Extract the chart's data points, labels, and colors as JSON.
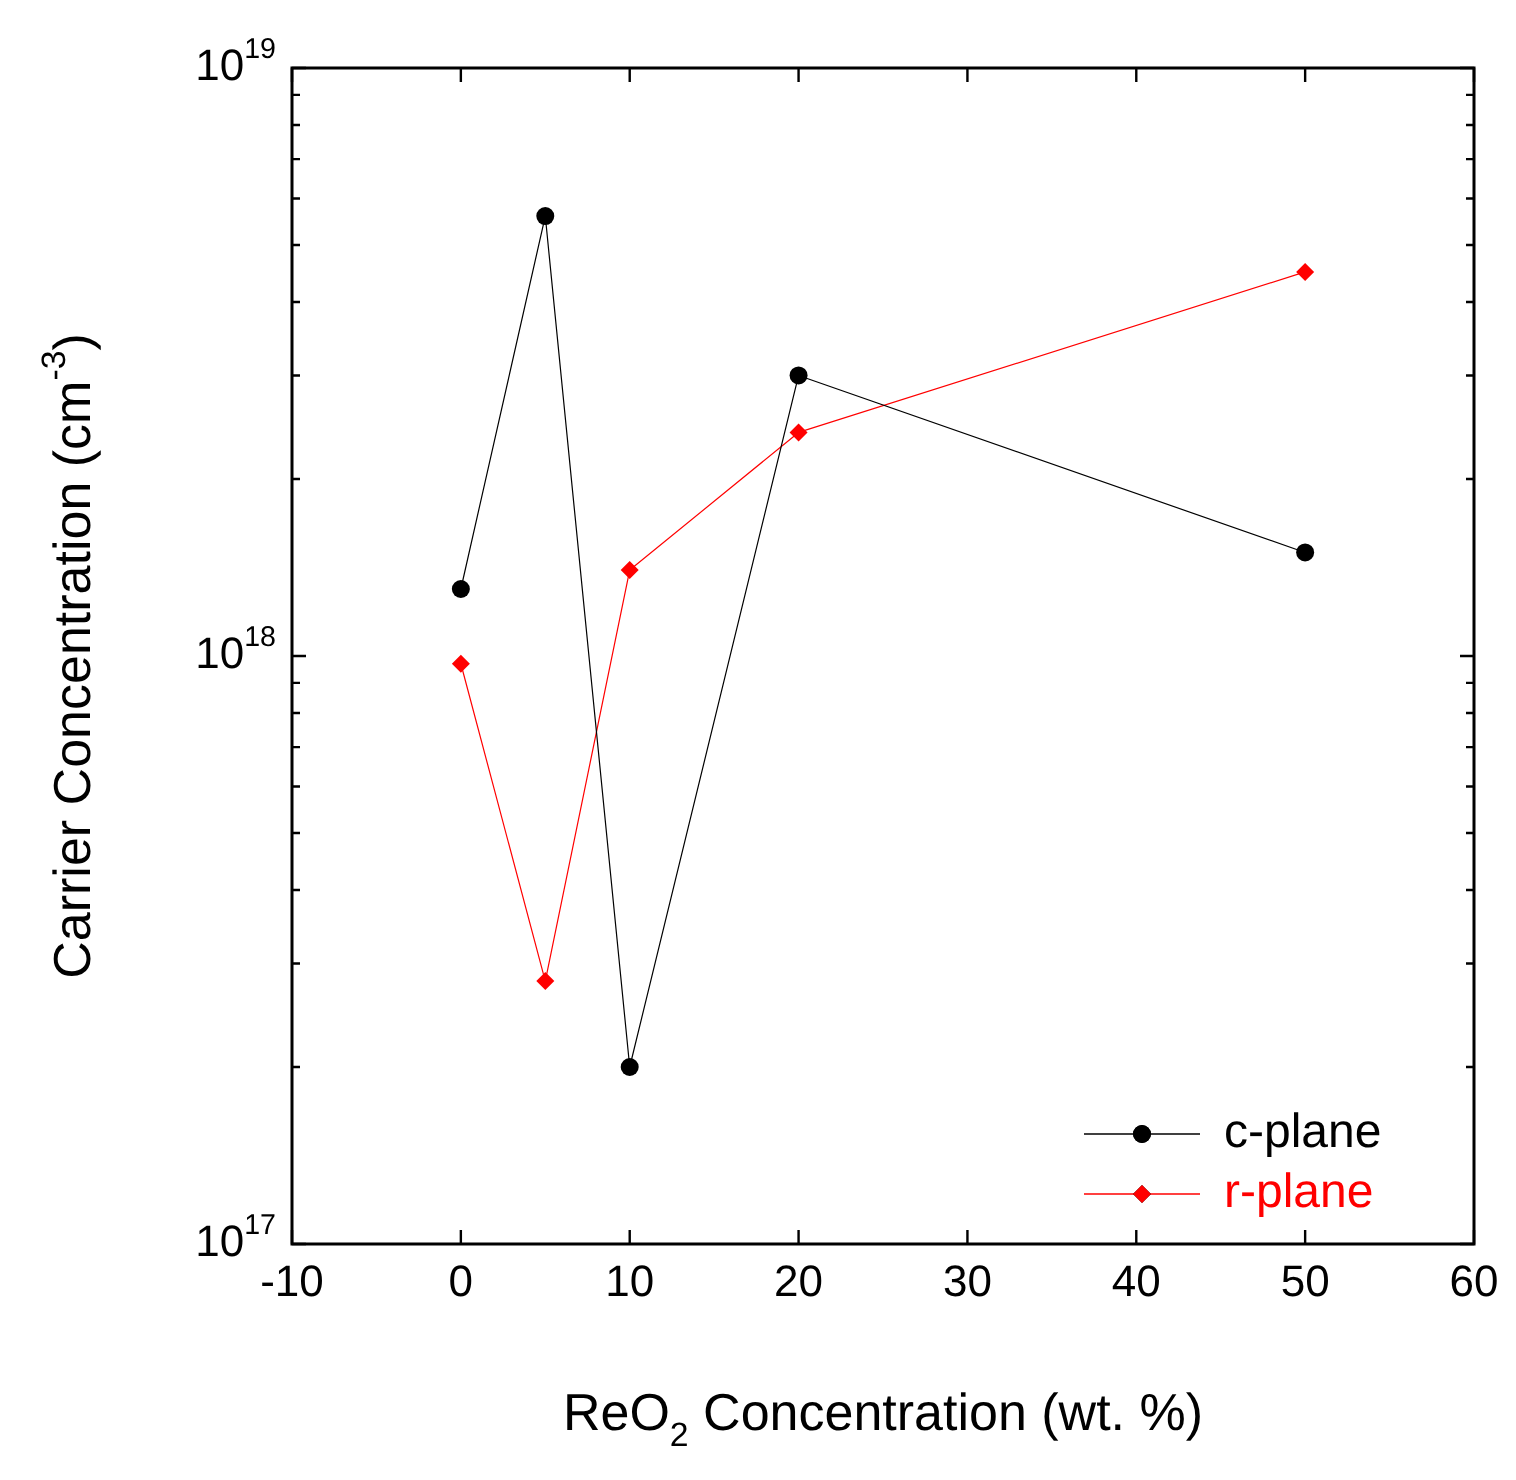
{
  "chart_data": {
    "type": "line",
    "xlabel": "ReO$_{2}$ Concentration (wt. %)",
    "ylabel": "Carrier Concentration (cm$^{-3}$)",
    "x": [
      0,
      5,
      10,
      20,
      50
    ],
    "series": [
      {
        "name": "c-plane",
        "color": "#000000",
        "marker": "circle",
        "values": [
          1.3e+18,
          5.6e+18,
          2e+17,
          3e+18,
          1.5e+18
        ]
      },
      {
        "name": "r-plane",
        "color": "#ff0000",
        "marker": "diamond",
        "values": [
          9.7e+17,
          2.8e+17,
          1.4e+18,
          2.4e+18,
          4.5e+18
        ]
      }
    ],
    "log": "y",
    "xlim": [
      -10,
      60
    ],
    "xticks": [
      -10,
      0,
      10,
      20,
      30,
      40,
      50,
      60
    ],
    "ylim": [
      1e+17,
      1e+19
    ],
    "yticks": [
      {
        "value": 1e+17,
        "label": "10$^{17}$"
      },
      {
        "value": 2e+17,
        "label": null
      },
      {
        "value": 3e+17,
        "label": null
      },
      {
        "value": 4e+17,
        "label": null
      },
      {
        "value": 5e+17,
        "label": null
      },
      {
        "value": 6e+17,
        "label": null
      },
      {
        "value": 7e+17,
        "label": null
      },
      {
        "value": 8e+17,
        "label": null
      },
      {
        "value": 9e+17,
        "label": null
      },
      {
        "value": 1e+18,
        "label": "10$^{18}$"
      },
      {
        "value": 2e+18,
        "label": null
      },
      {
        "value": 3e+18,
        "label": null
      },
      {
        "value": 4e+18,
        "label": null
      },
      {
        "value": 5e+18,
        "label": null
      },
      {
        "value": 6e+18,
        "label": null
      },
      {
        "value": 7e+18,
        "label": null
      },
      {
        "value": 8e+18,
        "label": null
      },
      {
        "value": 9e+18,
        "label": null
      },
      {
        "value": 1e+19,
        "label": "10$^{19}$"
      }
    ],
    "grid": false,
    "legend": "bottom right",
    "line_style": "solid"
  }
}
